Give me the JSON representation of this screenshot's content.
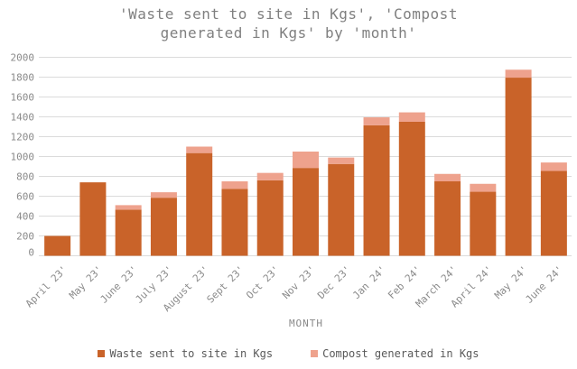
{
  "header": {
    "title_line1": "'Waste sent to site in Kgs', 'Compost",
    "title_line2": "generated in Kgs' by 'month'"
  },
  "chart_data": {
    "type": "bar",
    "stacked": true,
    "title": "'Waste sent to site in Kgs', 'Compost generated in Kgs' by 'month'",
    "xlabel": "MONTH",
    "ylabel": "",
    "ylim": [
      0,
      2000
    ],
    "ytick_step": 200,
    "grid": true,
    "legend_position": "bottom",
    "categories": [
      "April 23'",
      "May 23'",
      "June 23'",
      "July 23'",
      "August 23'",
      "Sept 23'",
      "Oct 23'",
      "Nov 23'",
      "Dec 23'",
      "Jan 24'",
      "Feb 24'",
      "March 24'",
      "April 24'",
      "May 24'",
      "June 24'"
    ],
    "series": [
      {
        "name": "Waste sent to site in Kgs",
        "color": "#C96329",
        "values": [
          200,
          740,
          465,
          585,
          1035,
          675,
          760,
          885,
          925,
          1315,
          1350,
          750,
          645,
          1795,
          855
        ]
      },
      {
        "name": "Compost generated in Kgs",
        "color": "#EEA28D",
        "values": [
          0,
          0,
          45,
          55,
          65,
          75,
          75,
          165,
          65,
          80,
          95,
          75,
          80,
          80,
          85
        ]
      }
    ]
  },
  "colors": {
    "grid": "#DBDBDB",
    "axis_text": "#8A8A8A",
    "title_text": "#7F7F7F",
    "legend_text": "#595959",
    "background": "#FFFFFF"
  }
}
